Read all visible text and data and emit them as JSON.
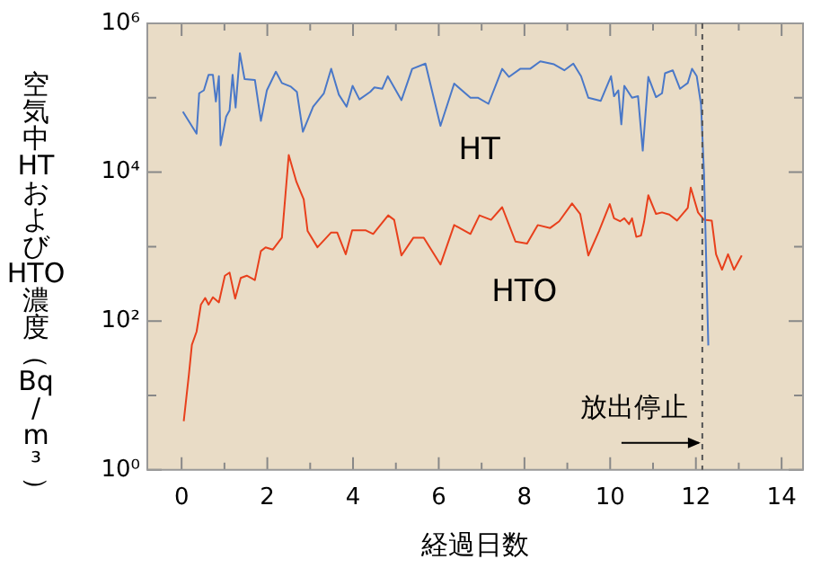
{
  "chart_data": {
    "type": "line",
    "xlabel": "経過日数",
    "ylabel": "空気中HTおよびHTO濃度（Bq/m³）",
    "xlim": [
      -0.8,
      14.5
    ],
    "xticks": [
      0,
      {
        "value": 1,
        "label": null
      },
      2,
      {
        "value": 3,
        "label": null
      },
      4,
      {
        "value": 5,
        "label": null
      },
      6,
      {
        "value": 7,
        "label": null
      },
      8,
      {
        "value": 9,
        "label": null
      },
      10,
      {
        "value": 11,
        "label": null
      },
      12,
      {
        "value": 13,
        "label": null
      },
      14
    ],
    "ylim": [
      1,
      1000000
    ],
    "yticks": [
      {
        "value": 1,
        "label": "10⁰"
      },
      {
        "value": 10,
        "label": null
      },
      {
        "value": 100,
        "label": "10²"
      },
      {
        "value": 1000,
        "label": null
      },
      {
        "value": 10000,
        "label": "10⁴"
      },
      {
        "value": 100000,
        "label": null
      },
      {
        "value": 1000000,
        "label": "10⁶"
      }
    ],
    "log": "y",
    "marker": "none",
    "line_style": "solid",
    "series": [
      {
        "name": "HT",
        "color": "#4a78c8",
        "x": [
          0.03,
          0.35,
          0.41,
          0.52,
          0.63,
          0.73,
          0.8,
          0.87,
          0.91,
          1.04,
          1.12,
          1.19,
          1.26,
          1.36,
          1.47,
          1.71,
          1.85,
          1.99,
          2.2,
          2.34,
          2.55,
          2.69,
          2.83,
          3.07,
          3.32,
          3.49,
          3.67,
          3.85,
          3.99,
          4.15,
          4.4,
          4.5,
          4.68,
          4.81,
          5.13,
          5.38,
          5.69,
          6.04,
          6.36,
          6.74,
          6.92,
          7.16,
          7.48,
          7.64,
          7.9,
          8.13,
          8.37,
          8.69,
          8.93,
          9.14,
          9.32,
          9.49,
          9.78,
          10.02,
          10.09,
          10.19,
          10.26,
          10.33,
          10.51,
          10.65,
          10.76,
          10.89,
          11.07,
          11.21,
          11.28,
          11.46,
          11.63,
          11.81,
          11.91,
          12.02,
          12.12,
          12.19,
          12.29
        ],
        "values": [
          65000,
          33000,
          115000,
          126000,
          204000,
          204000,
          89000,
          195000,
          23000,
          56000,
          68000,
          204000,
          74000,
          398000,
          178000,
          174000,
          49000,
          126000,
          224000,
          158000,
          141000,
          120000,
          35000,
          76000,
          115000,
          245000,
          110000,
          76000,
          145000,
          95000,
          120000,
          138000,
          132000,
          195000,
          93000,
          245000,
          288000,
          42000,
          155000,
          100000,
          100000,
          83000,
          245000,
          191000,
          245000,
          245000,
          309000,
          282000,
          234000,
          288000,
          195000,
          100000,
          91000,
          195000,
          105000,
          126000,
          44000,
          145000,
          100000,
          105000,
          19500,
          191000,
          102000,
          115000,
          214000,
          234000,
          132000,
          158000,
          245000,
          195000,
          81000,
          9500,
          47
        ]
      },
      {
        "name": "HTO",
        "color": "#e8401c",
        "x": [
          0.05,
          0.17,
          0.24,
          0.35,
          0.45,
          0.55,
          0.63,
          0.73,
          0.87,
          1.01,
          1.12,
          1.25,
          1.38,
          1.52,
          1.71,
          1.85,
          1.96,
          2.13,
          2.34,
          2.5,
          2.68,
          2.85,
          2.94,
          3.17,
          3.49,
          3.63,
          3.83,
          3.98,
          4.29,
          4.47,
          4.82,
          4.96,
          5.13,
          5.41,
          5.65,
          6.04,
          6.36,
          6.74,
          6.95,
          7.22,
          7.48,
          7.79,
          8.06,
          8.31,
          8.6,
          8.81,
          9.11,
          9.3,
          9.49,
          9.74,
          9.99,
          10.09,
          10.23,
          10.33,
          10.44,
          10.51,
          10.61,
          10.72,
          10.79,
          10.89,
          11.07,
          11.21,
          11.38,
          11.56,
          11.81,
          11.88,
          12.05,
          12.19,
          12.37,
          12.47,
          12.61,
          12.75,
          12.89,
          13.07
        ],
        "values": [
          4.5,
          19,
          48,
          72,
          166,
          204,
          166,
          209,
          178,
          407,
          447,
          200,
          380,
          407,
          355,
          871,
          977,
          912,
          1320,
          17000,
          7400,
          4300,
          1620,
          980,
          1550,
          1550,
          790,
          1660,
          1660,
          1480,
          2630,
          2290,
          760,
          1320,
          1320,
          575,
          1950,
          1480,
          2630,
          2290,
          3390,
          1170,
          1100,
          1950,
          1780,
          2190,
          3800,
          2750,
          760,
          1620,
          3720,
          2400,
          2190,
          2400,
          2000,
          2400,
          1350,
          1410,
          2140,
          4900,
          2750,
          2880,
          2690,
          2240,
          3310,
          6200,
          2880,
          2290,
          2240,
          790,
          490,
          790,
          490,
          760
        ]
      }
    ],
    "ref_lines": [
      {
        "axis": "x",
        "value": 12.15,
        "label": "放出停止",
        "color": "#555555",
        "line_style": "dashed"
      }
    ]
  }
}
